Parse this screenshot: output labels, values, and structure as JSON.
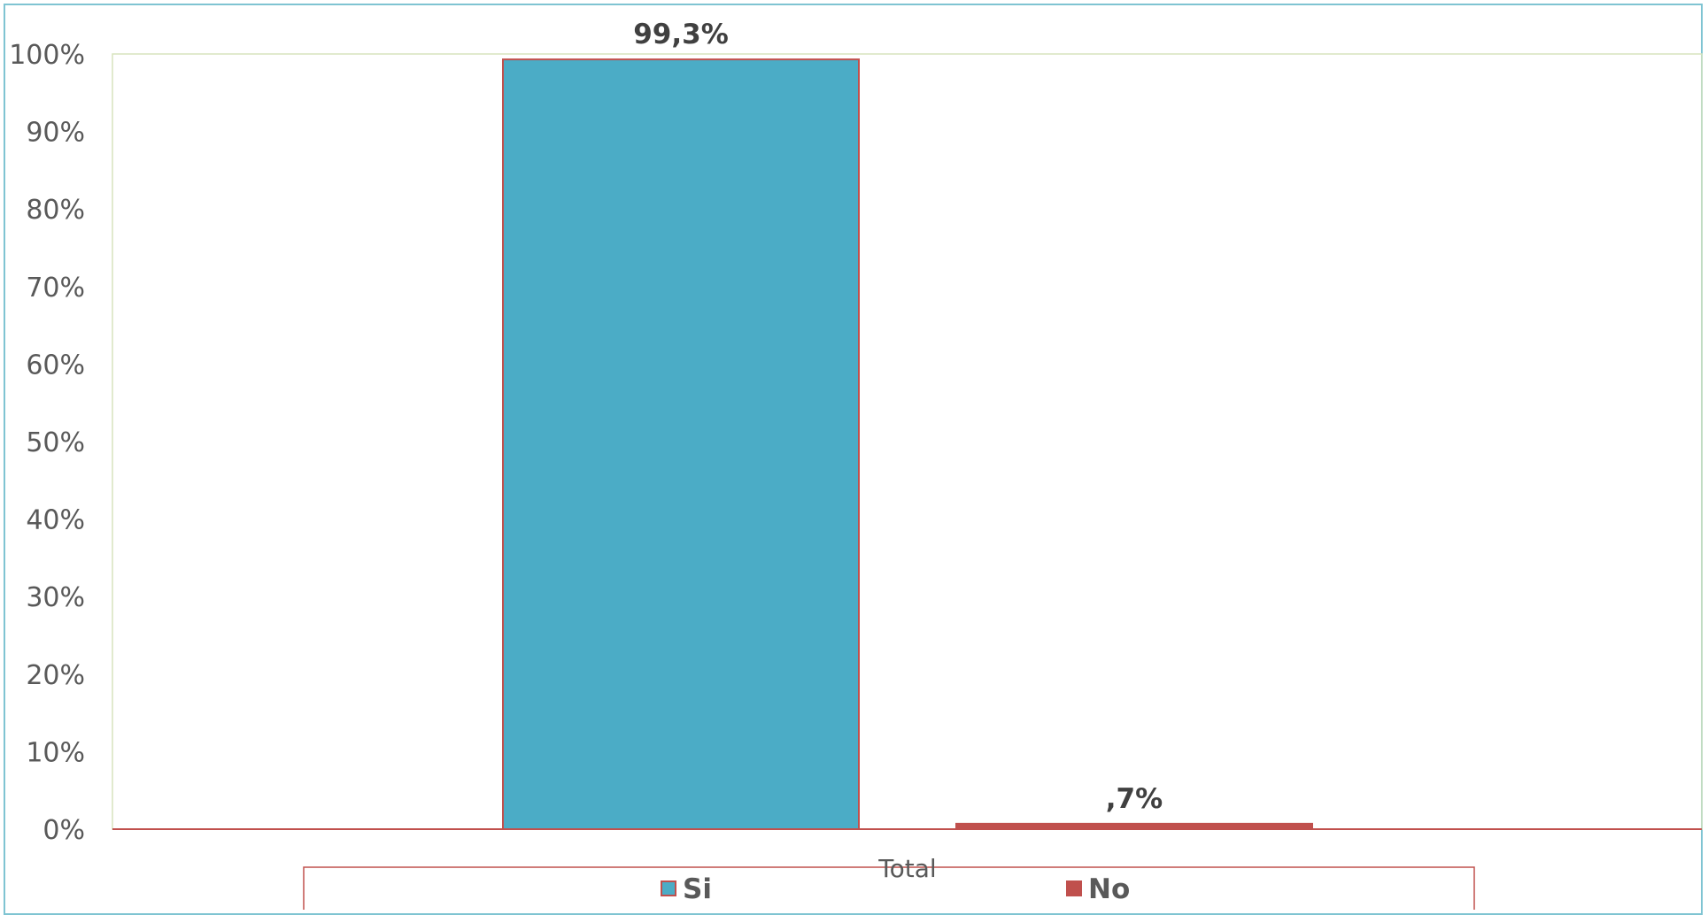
{
  "chart_data": {
    "type": "bar",
    "categories": [
      "Total"
    ],
    "series": [
      {
        "name": "Si",
        "values": [
          99.3
        ],
        "label": "99,3%",
        "color": "#4bacc6",
        "border": "#c0504d"
      },
      {
        "name": "No",
        "values": [
          0.7
        ],
        "label": ",7%",
        "color": "#c0504d",
        "border": "#c0504d"
      }
    ],
    "ylim": [
      0,
      100
    ],
    "yticks": [
      0,
      10,
      20,
      30,
      40,
      50,
      60,
      70,
      80,
      90,
      100
    ],
    "ytick_labels": [
      "0%",
      "10%",
      "20%",
      "30%",
      "40%",
      "50%",
      "60%",
      "70%",
      "80%",
      "90%",
      "100%"
    ],
    "legend_position": "bottom",
    "colors": {
      "frame": "#7fc4d2",
      "plot_border": "#d7e4bd",
      "axis_line": "#c0504d",
      "legend_border": "#c0504d"
    }
  }
}
